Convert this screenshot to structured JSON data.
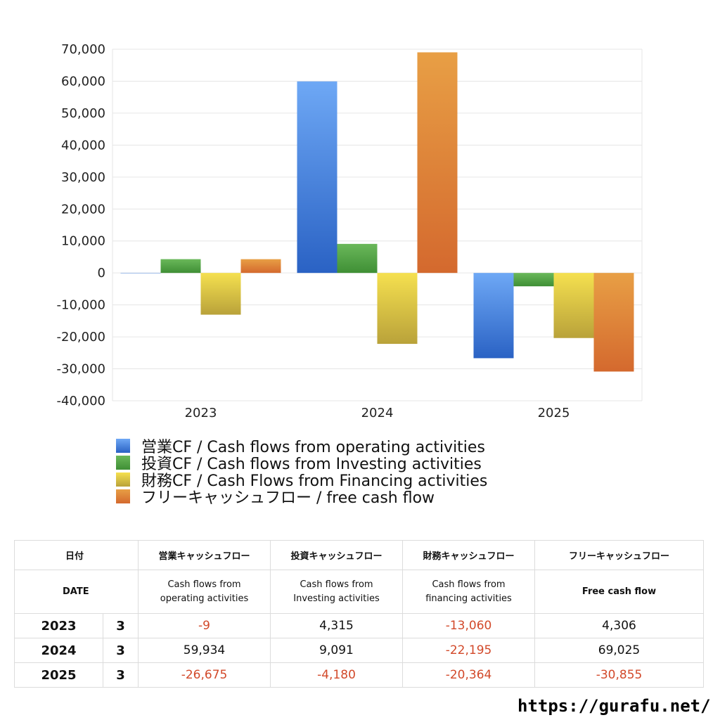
{
  "chart_data": {
    "type": "bar",
    "categories": [
      "2023",
      "2024",
      "2025"
    ],
    "series": [
      {
        "name": "営業CF / Cash flows from operating activities",
        "values": [
          -9,
          59934,
          -26675
        ],
        "color_top": "#6ea8f5",
        "color_bottom": "#2a62c4"
      },
      {
        "name": "投資CF / Cash flows from Investing activities",
        "values": [
          4315,
          9091,
          -4180
        ],
        "color_top": "#6ab85a",
        "color_bottom": "#3f8f35"
      },
      {
        "name": "財務CF / Cash Flows from Financing activities",
        "values": [
          -13060,
          -22195,
          -20364
        ],
        "color_top": "#f5e04f",
        "color_bottom": "#b9a23a"
      },
      {
        "name": "フリーキャッシュフロー / free cash flow",
        "values": [
          4306,
          69025,
          -30855
        ],
        "color_top": "#e89f45",
        "color_bottom": "#d4692e"
      }
    ],
    "ylim": [
      -40000,
      70000
    ],
    "yticks": [
      "70,000",
      "60,000",
      "50,000",
      "40,000",
      "30,000",
      "20,000",
      "10,000",
      "0",
      "-10,000",
      "-20,000",
      "-30,000",
      "-40,000"
    ],
    "grid": true,
    "legend_position": "bottom"
  },
  "table": {
    "header_jp": [
      "日付",
      "営業キャッシュフロー",
      "投資キャッシュフロー",
      "財務キャッシュフロー",
      "フリーキャッシュフロー"
    ],
    "header_en": [
      "DATE",
      "Cash flows from\noperating activities",
      "Cash flows from\nInvesting activities",
      "Cash flows from\nfinancing activities",
      "Free cash flow"
    ],
    "rows": [
      {
        "year": "2023",
        "month": "3",
        "values": [
          "-9",
          "4,315",
          "-13,060",
          "4,306"
        ]
      },
      {
        "year": "2024",
        "month": "3",
        "values": [
          "59,934",
          "9,091",
          "-22,195",
          "69,025"
        ]
      },
      {
        "year": "2025",
        "month": "3",
        "values": [
          "-26,675",
          "-4,180",
          "-20,364",
          "-30,855"
        ]
      }
    ]
  },
  "footer_url": "https://gurafu.net/"
}
